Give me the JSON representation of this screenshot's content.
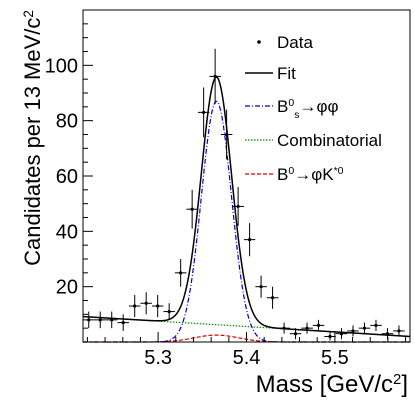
{
  "chart_data": {
    "type": "scatter",
    "xlabel": "Mass [GeV/c",
    "xlabel_sup": "2",
    "xlabel_end": "]",
    "ylabel": "Candidates per 13 MeV/c",
    "ylabel_sup": "2",
    "xlim": [
      5.215,
      5.585
    ],
    "ylim": [
      0,
      120
    ],
    "x_ticks": [
      {
        "value": 5.3,
        "label": "5.3"
      },
      {
        "value": 5.4,
        "label": "5.4"
      },
      {
        "value": 5.5,
        "label": "5.5"
      }
    ],
    "y_ticks": [
      {
        "value": 20,
        "label": "20"
      },
      {
        "value": 40,
        "label": "40"
      },
      {
        "value": 60,
        "label": "60"
      },
      {
        "value": 80,
        "label": "80"
      },
      {
        "value": 100,
        "label": "100"
      }
    ],
    "legend": {
      "placement": "top-right",
      "entries": [
        {
          "key": "data",
          "style": "marker",
          "color": "#000000",
          "parts": [
            {
              "t": "Data"
            }
          ]
        },
        {
          "key": "fit",
          "style": "solid",
          "color": "#000000",
          "parts": [
            {
              "t": "Fit"
            }
          ]
        },
        {
          "key": "bs",
          "style": "dashdot",
          "color": "#0000cc",
          "parts": [
            {
              "t": "B"
            },
            {
              "t": "0",
              "s": "sup"
            },
            {
              "t": "s",
              "s": "sub"
            },
            {
              "t": "→φφ"
            }
          ]
        },
        {
          "key": "comb",
          "style": "dotted",
          "color": "#008800",
          "parts": [
            {
              "t": "Combinatorial"
            }
          ]
        },
        {
          "key": "bd",
          "style": "dashed",
          "color": "#dd0000",
          "parts": [
            {
              "t": "B"
            },
            {
              "t": "0",
              "s": "sup"
            },
            {
              "t": "→φK"
            },
            {
              "t": "*0",
              "s": "sup"
            }
          ]
        }
      ]
    },
    "points": [
      {
        "x": 5.2215,
        "y": 8,
        "err": 3
      },
      {
        "x": 5.2345,
        "y": 8,
        "err": 3
      },
      {
        "x": 5.2475,
        "y": 8,
        "err": 3
      },
      {
        "x": 5.2605,
        "y": 7,
        "err": 3
      },
      {
        "x": 5.2735,
        "y": 13,
        "err": 4
      },
      {
        "x": 5.2865,
        "y": 14,
        "err": 4
      },
      {
        "x": 5.2995,
        "y": 13,
        "err": 4
      },
      {
        "x": 5.3125,
        "y": 11,
        "err": 3
      },
      {
        "x": 5.3255,
        "y": 25,
        "err": 5
      },
      {
        "x": 5.3385,
        "y": 48,
        "err": 7
      },
      {
        "x": 5.3515,
        "y": 83,
        "err": 9
      },
      {
        "x": 5.3645,
        "y": 96,
        "err": 10
      },
      {
        "x": 5.3775,
        "y": 75,
        "err": 9
      },
      {
        "x": 5.3905,
        "y": 49,
        "err": 7
      },
      {
        "x": 5.4035,
        "y": 37,
        "err": 6
      },
      {
        "x": 5.4165,
        "y": 20,
        "err": 4
      },
      {
        "x": 5.4295,
        "y": 16,
        "err": 4
      },
      {
        "x": 5.4425,
        "y": 5,
        "err": 2
      },
      {
        "x": 5.4555,
        "y": 3,
        "err": 2
      },
      {
        "x": 5.4685,
        "y": 5,
        "err": 2
      },
      {
        "x": 5.4815,
        "y": 6,
        "err": 2
      },
      {
        "x": 5.4945,
        "y": 2,
        "err": 1.5
      },
      {
        "x": 5.5075,
        "y": 3,
        "err": 2
      },
      {
        "x": 5.5205,
        "y": 4,
        "err": 2
      },
      {
        "x": 5.5335,
        "y": 5,
        "err": 2
      },
      {
        "x": 5.5465,
        "y": 6,
        "err": 2
      },
      {
        "x": 5.5595,
        "y": 3,
        "err": 2
      },
      {
        "x": 5.5725,
        "y": 4,
        "err": 2
      }
    ],
    "model": {
      "peak_mean": 5.366,
      "peak_sigma": 0.017,
      "peak_amplitude": 87,
      "combinatorial": {
        "y_at_xmin": 9.2,
        "y_at_xmax": 2.0
      },
      "bd": {
        "mean": 5.366,
        "sigma": 0.025,
        "amplitude": 2.5
      }
    },
    "series": [
      {
        "key": "fit",
        "color": "#000000"
      },
      {
        "key": "bs",
        "color": "#0000cc"
      },
      {
        "key": "comb",
        "color": "#008800"
      },
      {
        "key": "bd",
        "color": "#dd0000"
      }
    ]
  }
}
